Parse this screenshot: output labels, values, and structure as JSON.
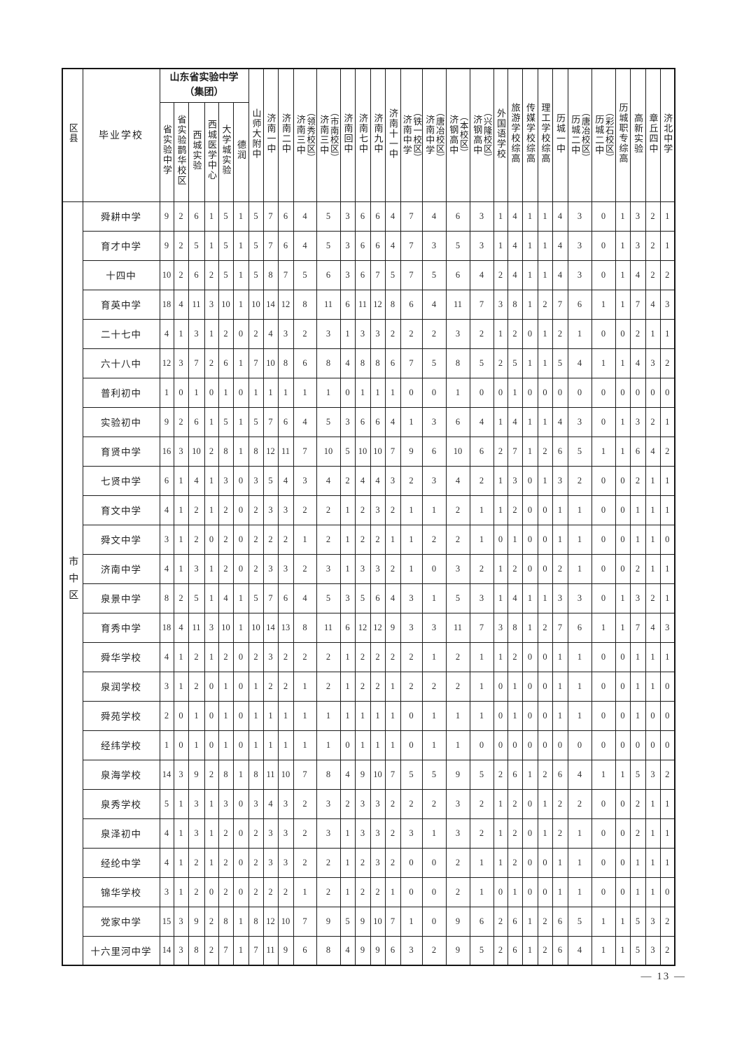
{
  "page": {
    "footer": "— 13 —"
  },
  "table": {
    "corner_header": "区县",
    "school_col_header": "毕业学校",
    "group_title": "山东省实验中学",
    "group_subtitle": "（集团）",
    "district": "市中区",
    "columns": [
      {
        "name": "省实验中学"
      },
      {
        "name": "省实验鹊华校区"
      },
      {
        "name": "西城实验"
      },
      {
        "name": "西城医学中心"
      },
      {
        "name": "大学城实验"
      },
      {
        "name": "德润"
      },
      {
        "name": "山师大附中"
      },
      {
        "name": "济南一中"
      },
      {
        "name": "济南二中"
      },
      {
        "name": "济南三中",
        "campus": "（领秀校区）"
      },
      {
        "name": "济南三中",
        "campus": "（市南校区）"
      },
      {
        "name": "济南回中"
      },
      {
        "name": "济南七中"
      },
      {
        "name": "济南九中"
      },
      {
        "name": "济南十一中"
      },
      {
        "name": "济南中学",
        "campus": "（铁一校区）"
      },
      {
        "name": "济南中学",
        "campus": "（唐冶校区）"
      },
      {
        "name": "济钢高中",
        "campus": "（本校区）"
      },
      {
        "name": "济钢高中",
        "campus": "（兴隆校区）"
      },
      {
        "name": "外国语学校"
      },
      {
        "name": "旅游学校综高"
      },
      {
        "name": "传媒学校综高"
      },
      {
        "name": "理工学校综高"
      },
      {
        "name": "历城一中"
      },
      {
        "name": "历城二中",
        "campus": "（唐冶校区）"
      },
      {
        "name": "历城二中",
        "campus": "（彩石校区）"
      },
      {
        "name": "历城职专综高"
      },
      {
        "name": "高新实验"
      },
      {
        "name": "章丘四中"
      },
      {
        "name": "济北中学"
      }
    ],
    "rows": [
      {
        "school": "舜耕中学",
        "values": [
          9,
          2,
          6,
          1,
          5,
          1,
          5,
          7,
          6,
          4,
          5,
          3,
          6,
          6,
          4,
          7,
          4,
          6,
          3,
          1,
          4,
          1,
          1,
          4,
          3,
          0,
          1,
          3,
          2,
          1
        ]
      },
      {
        "school": "育才中学",
        "values": [
          9,
          2,
          5,
          1,
          5,
          1,
          5,
          7,
          6,
          4,
          5,
          3,
          6,
          6,
          4,
          7,
          3,
          5,
          3,
          1,
          4,
          1,
          1,
          4,
          3,
          0,
          1,
          3,
          2,
          1
        ]
      },
      {
        "school": "十四中",
        "values": [
          10,
          2,
          6,
          2,
          5,
          1,
          5,
          8,
          7,
          5,
          6,
          3,
          6,
          7,
          5,
          7,
          5,
          6,
          4,
          2,
          4,
          1,
          1,
          4,
          3,
          0,
          1,
          4,
          2,
          2
        ]
      },
      {
        "school": "育英中学",
        "values": [
          18,
          4,
          11,
          3,
          10,
          1,
          10,
          14,
          12,
          8,
          11,
          6,
          11,
          12,
          8,
          6,
          4,
          11,
          7,
          3,
          8,
          1,
          2,
          7,
          6,
          1,
          1,
          7,
          4,
          3
        ]
      },
      {
        "school": "二十七中",
        "values": [
          4,
          1,
          3,
          1,
          2,
          0,
          2,
          4,
          3,
          2,
          3,
          1,
          3,
          3,
          2,
          2,
          2,
          3,
          2,
          1,
          2,
          0,
          1,
          2,
          1,
          0,
          0,
          2,
          1,
          1
        ]
      },
      {
        "school": "六十八中",
        "values": [
          12,
          3,
          7,
          2,
          6,
          1,
          7,
          10,
          8,
          6,
          8,
          4,
          8,
          8,
          6,
          7,
          5,
          8,
          5,
          2,
          5,
          1,
          1,
          5,
          4,
          1,
          1,
          4,
          3,
          2
        ]
      },
      {
        "school": "普利初中",
        "values": [
          1,
          0,
          1,
          0,
          1,
          0,
          1,
          1,
          1,
          1,
          1,
          0,
          1,
          1,
          1,
          0,
          0,
          1,
          0,
          0,
          1,
          0,
          0,
          0,
          0,
          0,
          0,
          0,
          0,
          0
        ]
      },
      {
        "school": "实验初中",
        "values": [
          9,
          2,
          6,
          1,
          5,
          1,
          5,
          7,
          6,
          4,
          5,
          3,
          6,
          6,
          4,
          1,
          3,
          6,
          4,
          1,
          4,
          1,
          1,
          4,
          3,
          0,
          1,
          3,
          2,
          1
        ]
      },
      {
        "school": "育贤中学",
        "values": [
          16,
          3,
          10,
          2,
          8,
          1,
          8,
          12,
          11,
          7,
          10,
          5,
          10,
          10,
          7,
          9,
          6,
          10,
          6,
          2,
          7,
          1,
          2,
          6,
          5,
          1,
          1,
          6,
          4,
          2
        ]
      },
      {
        "school": "七贤中学",
        "values": [
          6,
          1,
          4,
          1,
          3,
          0,
          3,
          5,
          4,
          3,
          4,
          2,
          4,
          4,
          3,
          2,
          3,
          4,
          2,
          1,
          3,
          0,
          1,
          3,
          2,
          0,
          0,
          2,
          1,
          1
        ]
      },
      {
        "school": "育文中学",
        "values": [
          4,
          1,
          2,
          1,
          2,
          0,
          2,
          3,
          3,
          2,
          2,
          1,
          2,
          3,
          2,
          1,
          1,
          2,
          1,
          1,
          2,
          0,
          0,
          1,
          1,
          0,
          0,
          1,
          1,
          1
        ]
      },
      {
        "school": "舜文中学",
        "values": [
          3,
          1,
          2,
          0,
          2,
          0,
          2,
          2,
          2,
          1,
          2,
          1,
          2,
          2,
          1,
          1,
          2,
          2,
          1,
          0,
          1,
          0,
          0,
          1,
          1,
          0,
          0,
          1,
          1,
          0
        ]
      },
      {
        "school": "济南中学",
        "values": [
          4,
          1,
          3,
          1,
          2,
          0,
          2,
          3,
          3,
          2,
          3,
          1,
          3,
          3,
          2,
          1,
          0,
          3,
          2,
          1,
          2,
          0,
          0,
          2,
          1,
          0,
          0,
          2,
          1,
          1
        ]
      },
      {
        "school": "泉景中学",
        "values": [
          8,
          2,
          5,
          1,
          4,
          1,
          5,
          7,
          6,
          4,
          5,
          3,
          5,
          6,
          4,
          3,
          1,
          5,
          3,
          1,
          4,
          1,
          1,
          3,
          3,
          0,
          1,
          3,
          2,
          1
        ]
      },
      {
        "school": "育秀中学",
        "values": [
          18,
          4,
          11,
          3,
          10,
          1,
          10,
          14,
          13,
          8,
          11,
          6,
          12,
          12,
          9,
          3,
          3,
          11,
          7,
          3,
          8,
          1,
          2,
          7,
          6,
          1,
          1,
          7,
          4,
          3
        ]
      },
      {
        "school": "舜华学校",
        "values": [
          4,
          1,
          2,
          1,
          2,
          0,
          2,
          3,
          2,
          2,
          2,
          1,
          2,
          2,
          2,
          2,
          1,
          2,
          1,
          1,
          2,
          0,
          0,
          1,
          1,
          0,
          0,
          1,
          1,
          1
        ]
      },
      {
        "school": "泉润学校",
        "values": [
          3,
          1,
          2,
          0,
          1,
          0,
          1,
          2,
          2,
          1,
          2,
          1,
          2,
          2,
          1,
          2,
          2,
          2,
          1,
          0,
          1,
          0,
          0,
          1,
          1,
          0,
          0,
          1,
          1,
          0
        ]
      },
      {
        "school": "舜苑学校",
        "values": [
          2,
          0,
          1,
          0,
          1,
          0,
          1,
          1,
          1,
          1,
          1,
          1,
          1,
          1,
          1,
          0,
          1,
          1,
          1,
          0,
          1,
          0,
          0,
          1,
          1,
          0,
          0,
          1,
          0,
          0
        ]
      },
      {
        "school": "经纬学校",
        "values": [
          1,
          0,
          1,
          0,
          1,
          0,
          1,
          1,
          1,
          1,
          1,
          0,
          1,
          1,
          1,
          0,
          1,
          1,
          0,
          0,
          0,
          0,
          0,
          0,
          0,
          0,
          0,
          0,
          0,
          0
        ]
      },
      {
        "school": "泉海学校",
        "values": [
          14,
          3,
          9,
          2,
          8,
          1,
          8,
          11,
          10,
          7,
          8,
          4,
          9,
          10,
          7,
          5,
          5,
          9,
          5,
          2,
          6,
          1,
          2,
          6,
          4,
          1,
          1,
          5,
          3,
          2
        ]
      },
      {
        "school": "泉秀学校",
        "values": [
          5,
          1,
          3,
          1,
          3,
          0,
          3,
          4,
          3,
          2,
          3,
          2,
          3,
          3,
          2,
          2,
          2,
          3,
          2,
          1,
          2,
          0,
          1,
          2,
          2,
          0,
          0,
          2,
          1,
          1
        ]
      },
      {
        "school": "泉泽初中",
        "values": [
          4,
          1,
          3,
          1,
          2,
          0,
          2,
          3,
          3,
          2,
          3,
          1,
          3,
          3,
          2,
          3,
          1,
          3,
          2,
          1,
          2,
          0,
          1,
          2,
          1,
          0,
          0,
          2,
          1,
          1
        ]
      },
      {
        "school": "经纶中学",
        "values": [
          4,
          1,
          2,
          1,
          2,
          0,
          2,
          3,
          3,
          2,
          2,
          1,
          2,
          3,
          2,
          0,
          0,
          2,
          1,
          1,
          2,
          0,
          0,
          1,
          1,
          0,
          0,
          1,
          1,
          1
        ]
      },
      {
        "school": "锦华学校",
        "values": [
          3,
          1,
          2,
          0,
          2,
          0,
          2,
          2,
          2,
          1,
          2,
          1,
          2,
          2,
          1,
          0,
          0,
          2,
          1,
          0,
          1,
          0,
          0,
          1,
          1,
          0,
          0,
          1,
          1,
          0
        ]
      },
      {
        "school": "党家中学",
        "values": [
          15,
          3,
          9,
          2,
          8,
          1,
          8,
          12,
          10,
          7,
          9,
          5,
          9,
          10,
          7,
          1,
          0,
          9,
          6,
          2,
          6,
          1,
          2,
          6,
          5,
          1,
          1,
          5,
          3,
          2
        ]
      },
      {
        "school": "十六里河中学",
        "values": [
          14,
          3,
          8,
          2,
          7,
          1,
          7,
          11,
          9,
          6,
          8,
          4,
          9,
          9,
          6,
          3,
          2,
          9,
          5,
          2,
          6,
          1,
          2,
          6,
          4,
          1,
          1,
          5,
          3,
          2
        ]
      }
    ]
  }
}
